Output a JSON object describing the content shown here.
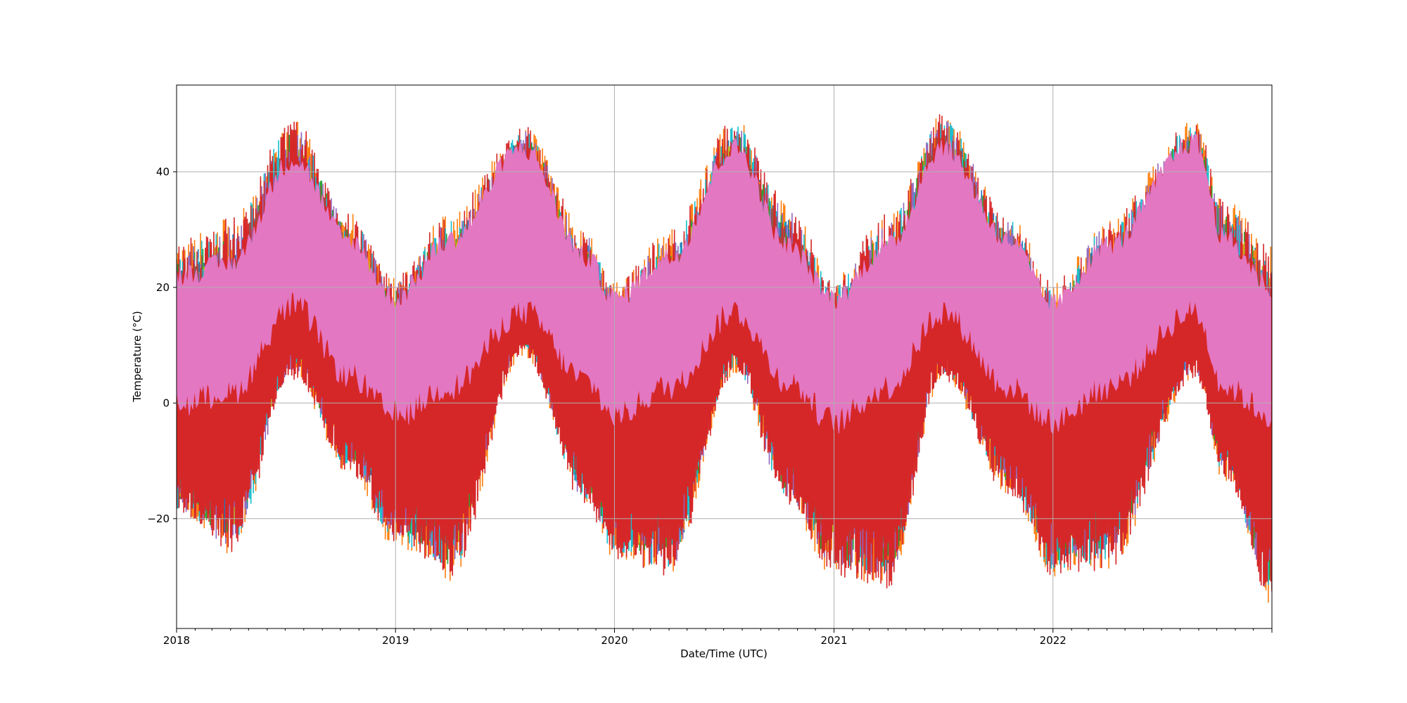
{
  "chart_data": {
    "type": "line",
    "title": "",
    "xlabel": "Date/Time (UTC)",
    "ylabel": "Temperature (°C)",
    "xlim": [
      "2018-01-01",
      "2023-01-01"
    ],
    "ylim": [
      -39,
      55
    ],
    "x_ticks": [
      "2018",
      "2019",
      "2020",
      "2021",
      "2022"
    ],
    "x_tick_dates": [
      "2018-01-01",
      "2019-01-01",
      "2020-01-01",
      "2021-01-01",
      "2022-01-01"
    ],
    "y_ticks": [
      -20,
      0,
      20,
      40
    ],
    "grid": true,
    "legend": "none",
    "series_colors": [
      "#1f77b4",
      "#ff7f0e",
      "#2ca02c",
      "#bcbd22",
      "#17becf",
      "#9467bd",
      "#8c564b",
      "#d62728",
      "#e377c2"
    ],
    "envelope_dates": [
      "2018-01-01",
      "2018-04-01",
      "2018-07-15",
      "2018-10-15",
      "2019-01-01",
      "2019-04-01",
      "2019-08-01",
      "2019-11-15",
      "2020-01-01",
      "2020-04-01",
      "2020-07-20",
      "2020-10-15",
      "2021-01-01",
      "2021-04-01",
      "2021-07-01",
      "2021-10-20",
      "2022-01-01",
      "2022-04-01",
      "2022-08-25",
      "2022-10-15",
      "2023-01-01"
    ],
    "envelope_max": [
      28,
      32,
      49,
      33,
      22,
      33,
      48,
      30,
      21,
      30,
      49,
      35,
      22,
      33,
      50,
      33,
      21,
      32,
      49,
      35,
      28
    ],
    "envelope_pink_top": [
      22,
      24,
      42,
      28,
      18,
      28,
      44,
      25,
      18,
      25,
      44,
      27,
      18,
      27,
      44,
      28,
      17,
      27,
      45,
      28,
      20
    ],
    "envelope_pink_bottom": [
      0,
      2,
      17,
      5,
      -2,
      3,
      16,
      4,
      -2,
      3,
      16,
      4,
      -3,
      3,
      16,
      3,
      -3,
      3,
      16,
      3,
      -2
    ],
    "envelope_min": [
      -20,
      -26,
      4,
      -12,
      -25,
      -31,
      8,
      -18,
      -27,
      -30,
      5,
      -18,
      -30,
      -32,
      4,
      -16,
      -30,
      -29,
      4,
      -14,
      -35
    ]
  }
}
